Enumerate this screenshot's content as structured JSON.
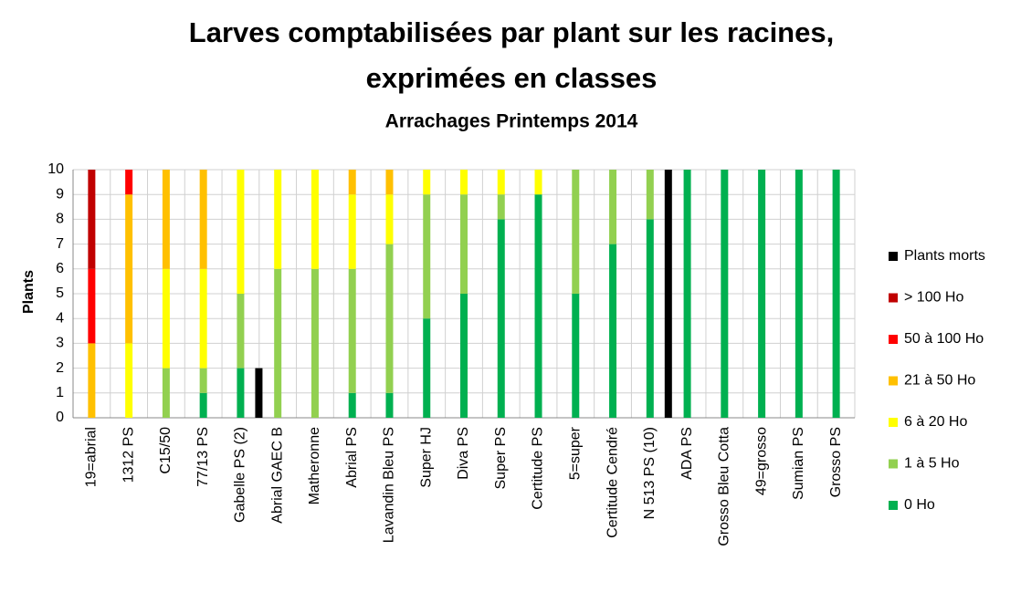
{
  "chart_data": {
    "type": "stacked_bar",
    "title": [
      "Larves comptabilisées par plant sur les racines,",
      "exprimées en classes"
    ],
    "subtitle": "Arrachages Printemps 2014",
    "ylabel": "Plants",
    "categories": [
      "19=abrial",
      "1312 PS",
      "C15/50",
      "77/13 PS",
      "Gabelle PS (2)",
      "Abrial GAEC B",
      "Matheronne",
      "Abrial PS",
      "Lavandin Bleu PS",
      "Super HJ",
      "Diva PS",
      "Super PS",
      "Certitude PS",
      "5=super",
      "Certitude Cendré",
      "N 513 PS (10)",
      "ADA PS",
      "Grosso Bleu Cotta",
      "49=grosso",
      "Sumian PS",
      "Grosso PS"
    ],
    "series": [
      {
        "name": "Plants morts",
        "color": "#000000",
        "stack": 2,
        "values": [
          0,
          0,
          0,
          0,
          2,
          0,
          0,
          0,
          0,
          0,
          0,
          0,
          0,
          0,
          0,
          10,
          0,
          0,
          0,
          0,
          0
        ]
      },
      {
        "name": "> 100 Ho",
        "color": "#c00000",
        "stack": 1,
        "values": [
          4,
          0,
          0,
          0,
          0,
          0,
          0,
          0,
          0,
          0,
          0,
          0,
          0,
          0,
          0,
          0,
          0,
          0,
          0,
          0,
          0
        ]
      },
      {
        "name": "50 à 100 Ho",
        "color": "#ff0000",
        "stack": 1,
        "values": [
          3,
          1,
          0,
          0,
          0,
          0,
          0,
          0,
          0,
          0,
          0,
          0,
          0,
          0,
          0,
          0,
          0,
          0,
          0,
          0,
          0
        ]
      },
      {
        "name": "21 à 50 Ho",
        "color": "#ffc000",
        "stack": 1,
        "values": [
          3,
          6,
          4,
          4,
          0,
          0,
          0,
          1,
          1,
          0,
          0,
          0,
          0,
          0,
          0,
          0,
          0,
          0,
          0,
          0,
          0
        ]
      },
      {
        "name": "6 à 20 Ho",
        "color": "#ffff00",
        "stack": 1,
        "values": [
          0,
          3,
          4,
          4,
          5,
          4,
          4,
          3,
          2,
          1,
          1,
          1,
          1,
          0,
          0,
          0,
          0,
          0,
          0,
          0,
          0
        ]
      },
      {
        "name": "1 à 5 Ho",
        "color": "#92d050",
        "stack": 1,
        "values": [
          0,
          0,
          2,
          1,
          3,
          6,
          6,
          5,
          6,
          5,
          4,
          1,
          0,
          5,
          3,
          2,
          0,
          0,
          0,
          0,
          0
        ]
      },
      {
        "name": "0 Ho",
        "color": "#00b050",
        "stack": 1,
        "values": [
          0,
          0,
          0,
          1,
          2,
          0,
          0,
          1,
          1,
          4,
          5,
          8,
          9,
          5,
          7,
          8,
          10,
          10,
          10,
          10,
          10
        ]
      }
    ],
    "ylim": [
      0,
      10
    ],
    "yticks": [
      0,
      1,
      2,
      3,
      4,
      5,
      6,
      7,
      8,
      9,
      10
    ],
    "grid": true,
    "legend": "right"
  }
}
